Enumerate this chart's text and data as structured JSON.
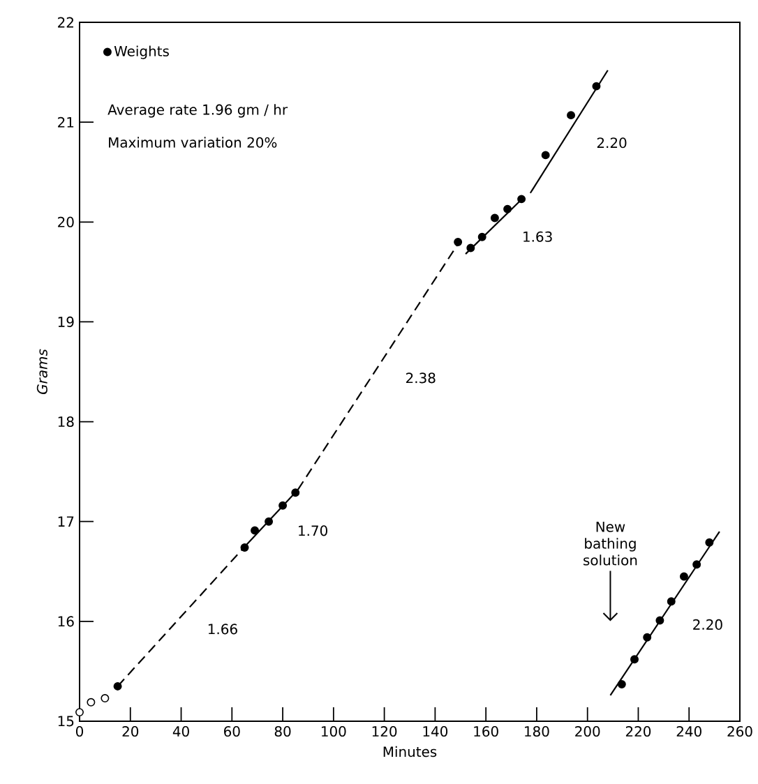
{
  "chart_data": {
    "type": "scatter",
    "xlabel": "Minutes",
    "ylabel": "Grams",
    "xlim": [
      0,
      260
    ],
    "ylim": [
      15,
      22
    ],
    "xticks": [
      0,
      20,
      40,
      60,
      80,
      100,
      120,
      140,
      160,
      180,
      200,
      220,
      240,
      260
    ],
    "yticks": [
      15,
      16,
      17,
      18,
      19,
      20,
      21,
      22
    ],
    "legend": "top left",
    "series": [
      {
        "type": "line",
        "line_style": "dashed",
        "color": "#000000",
        "x": [
          15,
          64
        ],
        "values": [
          15.35,
          16.72
        ]
      },
      {
        "type": "line",
        "line_style": "solid",
        "color": "#000000",
        "x": [
          64,
          86
        ],
        "values": [
          16.72,
          17.32
        ]
      },
      {
        "type": "line",
        "line_style": "dashed",
        "color": "#000000",
        "x": [
          86,
          149
        ],
        "values": [
          17.32,
          19.78
        ]
      },
      {
        "type": "line",
        "line_style": "solid",
        "color": "#000000",
        "x": [
          152,
          175
        ],
        "values": [
          19.68,
          20.25
        ]
      },
      {
        "type": "line",
        "line_style": "solid",
        "color": "#000000",
        "x": [
          177.5,
          208
        ],
        "values": [
          20.29,
          21.52
        ]
      },
      {
        "type": "line",
        "line_style": "solid",
        "color": "#000000",
        "x": [
          209,
          252
        ],
        "values": [
          15.26,
          16.9
        ]
      },
      {
        "color": "#ffffff",
        "x": [
          0,
          4.5,
          10
        ],
        "values": [
          15.09,
          15.19,
          15.23
        ]
      },
      {
        "name": "Weights",
        "color": "#000000",
        "x": [
          15,
          65,
          69,
          74.5,
          80,
          85,
          149,
          154,
          158.5,
          163.5,
          168.5,
          174,
          183.5,
          193.5,
          203.5,
          213.5,
          218.5,
          223.5,
          228.5,
          233,
          238,
          243,
          248
        ],
        "values": [
          15.35,
          16.74,
          16.91,
          17.0,
          17.16,
          17.29,
          19.8,
          19.74,
          19.85,
          20.04,
          20.13,
          20.23,
          20.67,
          21.07,
          21.36,
          15.37,
          15.62,
          15.84,
          16.01,
          16.2,
          16.45,
          16.57,
          16.79
        ]
      }
    ],
    "annotations": [
      "Average rate 1.96 gm / hr",
      "Maximum variation 20%",
      "1.66",
      "1.70",
      "2.38",
      "1.63",
      "2.20",
      "2.20",
      "New bathing solution"
    ]
  }
}
